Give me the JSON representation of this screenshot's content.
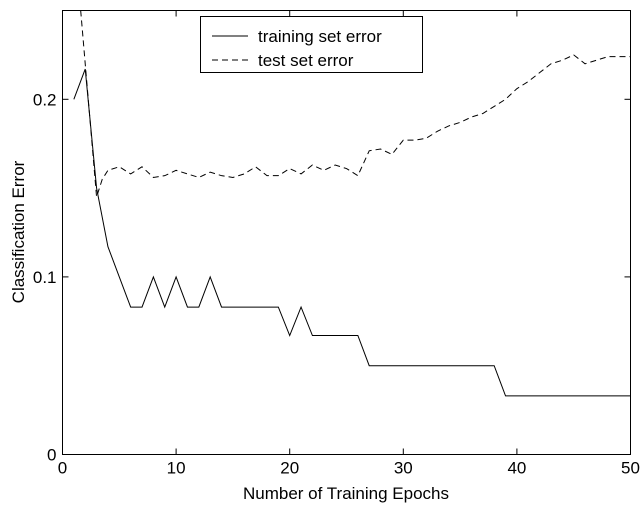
{
  "chart_data": {
    "type": "line",
    "title": "",
    "xlabel": "Number of Training Epochs",
    "ylabel": "Classification Error",
    "xlim": [
      0,
      50
    ],
    "ylim": [
      0,
      0.25
    ],
    "xticks": [
      0,
      10,
      20,
      30,
      40,
      50
    ],
    "yticks": [
      0,
      0.1,
      0.2
    ],
    "xtick_labels": [
      "0",
      "10",
      "20",
      "30",
      "40",
      "50"
    ],
    "ytick_labels": [
      "0",
      "0.1",
      "0.2"
    ],
    "grid": false,
    "legend_position": "top-center",
    "series": [
      {
        "name": "training set error",
        "style": "solid",
        "color": "#000000",
        "x": [
          1,
          2,
          3,
          4,
          5,
          6,
          7,
          8,
          9,
          10,
          11,
          12,
          13,
          14,
          15,
          16,
          17,
          18,
          19,
          20,
          21,
          22,
          23,
          24,
          25,
          26,
          27,
          28,
          29,
          30,
          31,
          32,
          33,
          34,
          35,
          36,
          37,
          38,
          39,
          40,
          41,
          42,
          43,
          44,
          45,
          46,
          47,
          48,
          49,
          50
        ],
        "values": [
          0.2,
          0.217,
          0.15,
          0.117,
          0.1,
          0.083,
          0.083,
          0.1,
          0.083,
          0.1,
          0.083,
          0.083,
          0.1,
          0.083,
          0.083,
          0.083,
          0.083,
          0.083,
          0.083,
          0.067,
          0.083,
          0.067,
          0.067,
          0.067,
          0.067,
          0.067,
          0.05,
          0.05,
          0.05,
          0.05,
          0.05,
          0.05,
          0.05,
          0.05,
          0.05,
          0.05,
          0.05,
          0.05,
          0.033,
          0.033,
          0.033,
          0.033,
          0.033,
          0.033,
          0.033,
          0.033,
          0.033,
          0.033,
          0.033,
          0.033
        ]
      },
      {
        "name": "test set error",
        "style": "dashed",
        "color": "#000000",
        "x": [
          1.6,
          2,
          3,
          3.5,
          4,
          5,
          6,
          7,
          8,
          9,
          10,
          11,
          12,
          13,
          14,
          15,
          16,
          17,
          18,
          19,
          20,
          21,
          22,
          23,
          24,
          25,
          26,
          27,
          28,
          29,
          30,
          31,
          32,
          33,
          34,
          35,
          36,
          37,
          38,
          39,
          40,
          41,
          42,
          43,
          44,
          45,
          46,
          47,
          48,
          49,
          50
        ],
        "values": [
          0.25,
          0.22,
          0.145,
          0.155,
          0.16,
          0.162,
          0.158,
          0.162,
          0.156,
          0.157,
          0.16,
          0.158,
          0.156,
          0.159,
          0.157,
          0.156,
          0.158,
          0.162,
          0.157,
          0.157,
          0.161,
          0.158,
          0.163,
          0.16,
          0.163,
          0.161,
          0.157,
          0.171,
          0.172,
          0.169,
          0.177,
          0.177,
          0.178,
          0.182,
          0.185,
          0.187,
          0.19,
          0.192,
          0.196,
          0.2,
          0.206,
          0.21,
          0.215,
          0.22,
          0.222,
          0.225,
          0.22,
          0.222,
          0.224,
          0.224,
          0.224
        ]
      }
    ]
  }
}
